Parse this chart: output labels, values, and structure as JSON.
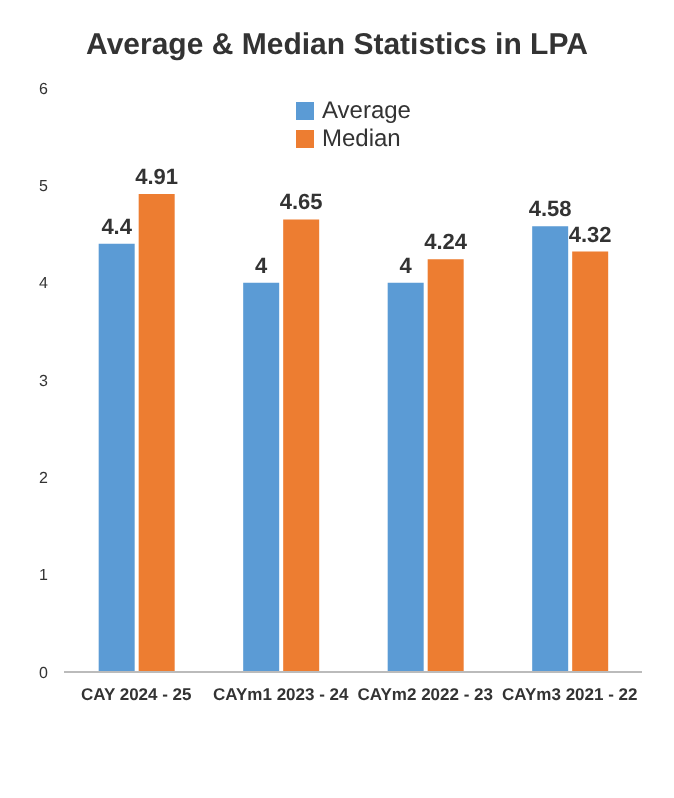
{
  "chart_data": {
    "type": "bar",
    "title": "Average & Median Statistics in LPA",
    "categories": [
      "CAY 2024 - 25",
      "CAYm1 2023 - 24",
      "CAYm2 2022 - 23",
      "CAYm3 2021 - 22"
    ],
    "series": [
      {
        "name": "Average",
        "color": "#5b9bd5",
        "values": [
          4.4,
          4,
          4,
          4.58
        ]
      },
      {
        "name": "Median",
        "color": "#ed7d31",
        "values": [
          4.91,
          4.65,
          4.24,
          4.32
        ]
      }
    ],
    "ylim": [
      0,
      6
    ],
    "yticks": [
      0,
      1,
      2,
      3,
      4,
      5,
      6
    ],
    "grid": false,
    "legend": "top",
    "data_labels": true
  }
}
